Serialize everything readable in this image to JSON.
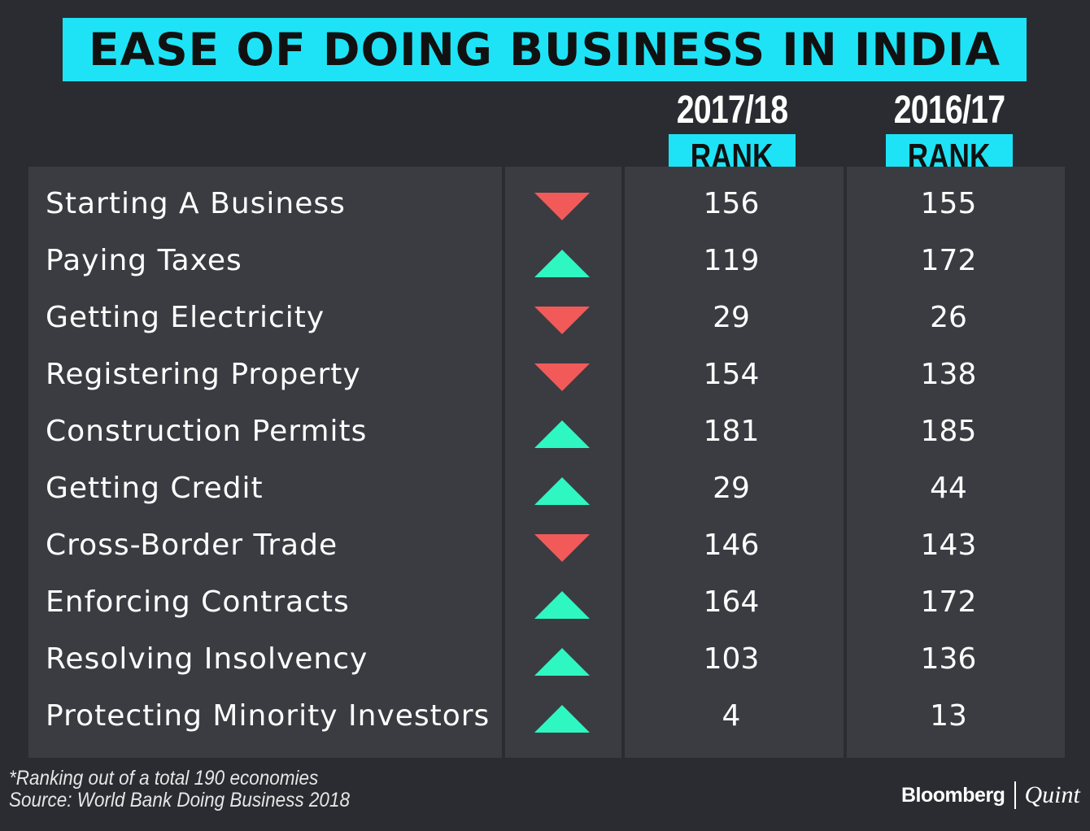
{
  "title": "EASE OF DOING BUSINESS IN INDIA",
  "columns": [
    {
      "year": "2017/18",
      "label": "RANK"
    },
    {
      "year": "2016/17",
      "label": "RANK"
    }
  ],
  "colors": {
    "accent": "#1ee3f6",
    "background": "#2b2c31",
    "panel": "#3b3c41",
    "up": "#2ff7c2",
    "down": "#f25a5a"
  },
  "chart_data": {
    "type": "table",
    "title": "EASE OF DOING BUSINESS IN INDIA",
    "columns": [
      "2017/18 RANK",
      "2016/17 RANK"
    ],
    "rows": [
      {
        "label": "Starting A Business",
        "trend": "down",
        "rank_2017_18": "156",
        "rank_2016_17": "155"
      },
      {
        "label": "Paying Taxes",
        "trend": "up",
        "rank_2017_18": "119",
        "rank_2016_17": "172"
      },
      {
        "label": "Getting Electricity",
        "trend": "down",
        "rank_2017_18": "29",
        "rank_2016_17": "26"
      },
      {
        "label": "Registering Property",
        "trend": "down",
        "rank_2017_18": "154",
        "rank_2016_17": "138"
      },
      {
        "label": "Construction Permits",
        "trend": "up",
        "rank_2017_18": "181",
        "rank_2016_17": "185"
      },
      {
        "label": "Getting Credit",
        "trend": "up",
        "rank_2017_18": "29",
        "rank_2016_17": "44"
      },
      {
        "label": "Cross-Border Trade",
        "trend": "down",
        "rank_2017_18": "146",
        "rank_2016_17": "143"
      },
      {
        "label": "Enforcing Contracts",
        "trend": "up",
        "rank_2017_18": "164",
        "rank_2016_17": "172"
      },
      {
        "label": "Resolving Insolvency",
        "trend": "up",
        "rank_2017_18": "103",
        "rank_2016_17": "136"
      },
      {
        "label": "Protecting Minority Investors",
        "trend": "up",
        "rank_2017_18": "4",
        "rank_2016_17": "13"
      }
    ]
  },
  "footnote": {
    "line1": "*Ranking out of a total 190 economies",
    "line2": "Source: World Bank Doing Business 2018"
  },
  "brand": {
    "primary": "Bloomberg",
    "secondary": "Quint"
  }
}
